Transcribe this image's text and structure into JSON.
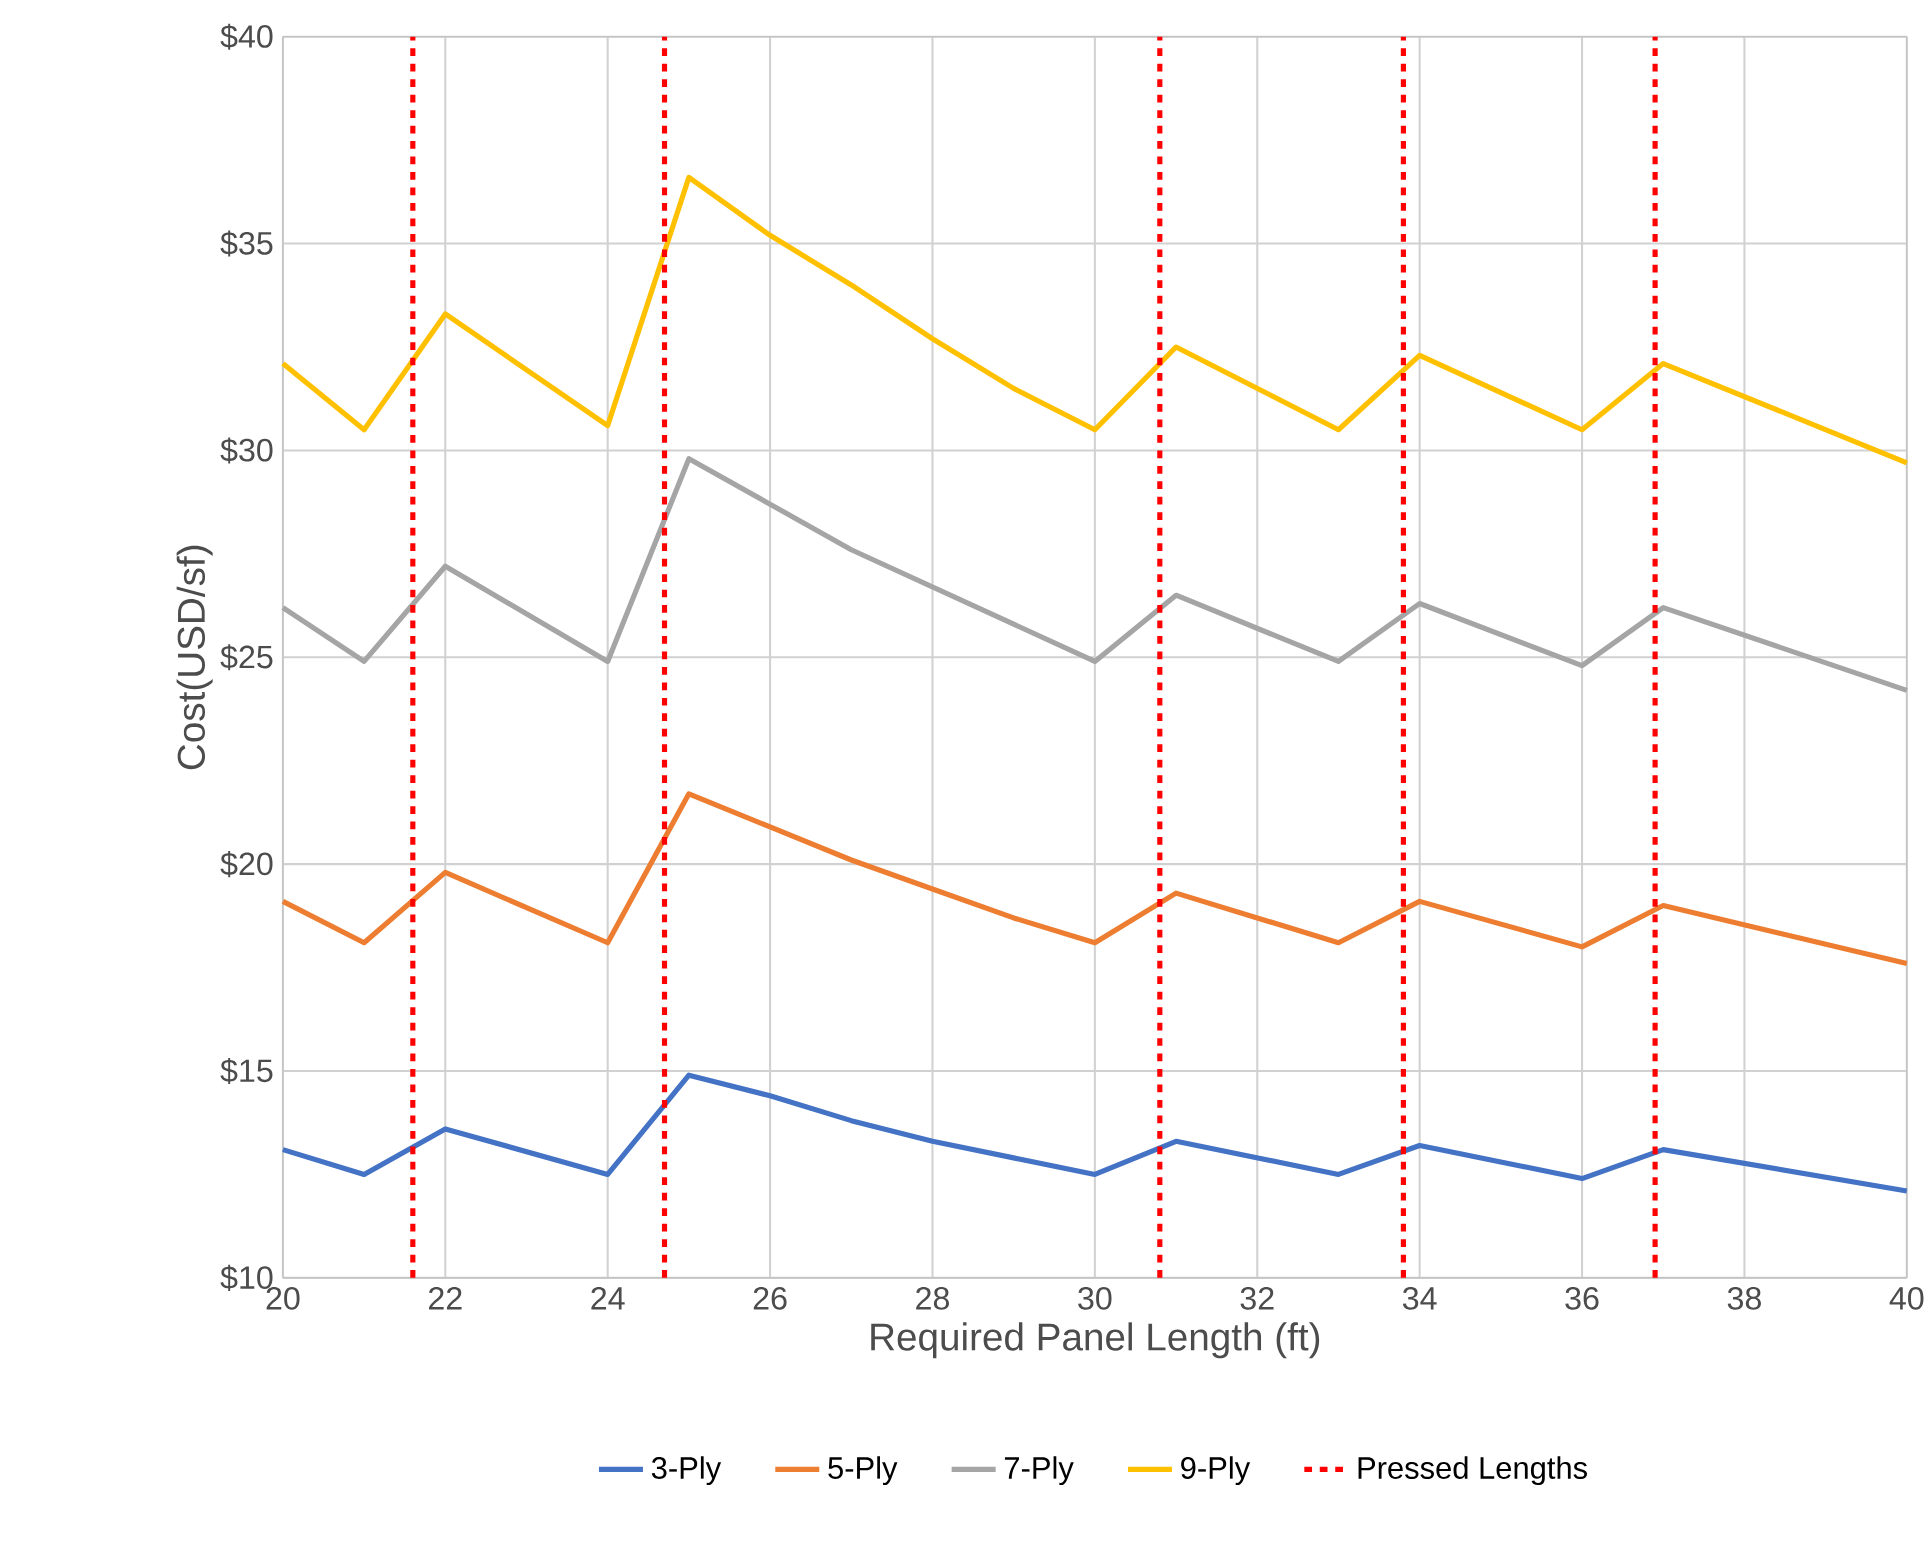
{
  "chart_data": {
    "type": "line",
    "xlabel": "Required Panel Length (ft)",
    "ylabel": "Cost(USD/sf)",
    "x": [
      20,
      21,
      22,
      24,
      25,
      26,
      27,
      28,
      29,
      30,
      31,
      33,
      34,
      36,
      37,
      40
    ],
    "series": [
      {
        "name": "3-Ply",
        "color": "#4472c4",
        "values": [
          13.1,
          12.5,
          13.6,
          12.5,
          14.9,
          14.4,
          13.8,
          13.3,
          12.9,
          12.5,
          13.3,
          12.5,
          13.2,
          12.4,
          13.1,
          12.1
        ]
      },
      {
        "name": "5-Ply",
        "color": "#ed7d31",
        "values": [
          19.1,
          18.1,
          19.8,
          18.1,
          21.7,
          20.9,
          20.1,
          19.4,
          18.7,
          18.1,
          19.3,
          18.1,
          19.1,
          18.0,
          19.0,
          17.6
        ]
      },
      {
        "name": "7-Ply",
        "color": "#a5a5a5",
        "values": [
          26.2,
          24.9,
          27.2,
          24.9,
          29.8,
          28.7,
          27.6,
          26.7,
          25.8,
          24.9,
          26.5,
          24.9,
          26.3,
          24.8,
          26.2,
          24.2
        ]
      },
      {
        "name": "9-Ply",
        "color": "#ffc000",
        "values": [
          32.1,
          30.5,
          33.3,
          30.6,
          36.6,
          35.2,
          34.0,
          32.7,
          31.5,
          30.5,
          32.5,
          30.5,
          32.3,
          30.5,
          32.1,
          29.7
        ]
      }
    ],
    "ref_lines": [
      {
        "axis": "x",
        "value": 21.6,
        "label": "Pressed Lengths",
        "color": "#ff0000",
        "line_style": "dashed"
      },
      {
        "axis": "x",
        "value": 24.7,
        "color": "#ff0000",
        "line_style": "dashed"
      },
      {
        "axis": "x",
        "value": 30.8,
        "color": "#ff0000",
        "line_style": "dashed"
      },
      {
        "axis": "x",
        "value": 33.8,
        "color": "#ff0000",
        "line_style": "dashed"
      },
      {
        "axis": "x",
        "value": 36.9,
        "color": "#ff0000",
        "line_style": "dashed"
      }
    ],
    "xlim": [
      20,
      40
    ],
    "xticks": [
      20,
      22,
      24,
      26,
      28,
      30,
      32,
      34,
      36,
      38,
      40
    ],
    "ylim": [
      10,
      40
    ],
    "yticks": [
      {
        "value": 10,
        "label": "$10"
      },
      {
        "value": 15,
        "label": "$15"
      },
      {
        "value": 20,
        "label": "$20"
      },
      {
        "value": 25,
        "label": "$25"
      },
      {
        "value": 30,
        "label": "$30"
      },
      {
        "value": 35,
        "label": "$35"
      },
      {
        "value": 40,
        "label": "$40"
      }
    ],
    "grid": true,
    "legend": "bottom",
    "marker": "none",
    "line_style": "solid"
  }
}
